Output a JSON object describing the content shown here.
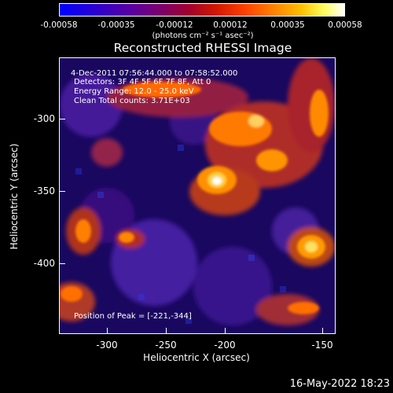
{
  "colorbar": {
    "ticks": [
      "-0.00058",
      "-0.00035",
      "-0.00012",
      "0.00012",
      "0.00035",
      "0.00058"
    ],
    "units": "(photons cm⁻² s⁻¹ asec⁻²)"
  },
  "title": "Reconstructed RHESSI Image",
  "info": {
    "time": "4-Dec-2011 07:56:44.000 to 07:58:52.000",
    "detectors": "Detectors: 3F 4F 5F 6F 7F 8F, Att 0",
    "energy": "Energy Range: 12.0 - 25.0 keV",
    "clean": "Clean     Total counts: 3.71E+03",
    "peak": "Position of Peak = [-221,-344]"
  },
  "axes": {
    "xlabel": "Heliocentric X (arcsec)",
    "ylabel": "Heliocentric Y (arcsec)",
    "xticks": [
      "-300",
      "-250",
      "-200",
      "-150"
    ],
    "yticks": [
      "-300",
      "-350",
      "-400"
    ]
  },
  "timestamp": "16-May-2022 18:23"
}
